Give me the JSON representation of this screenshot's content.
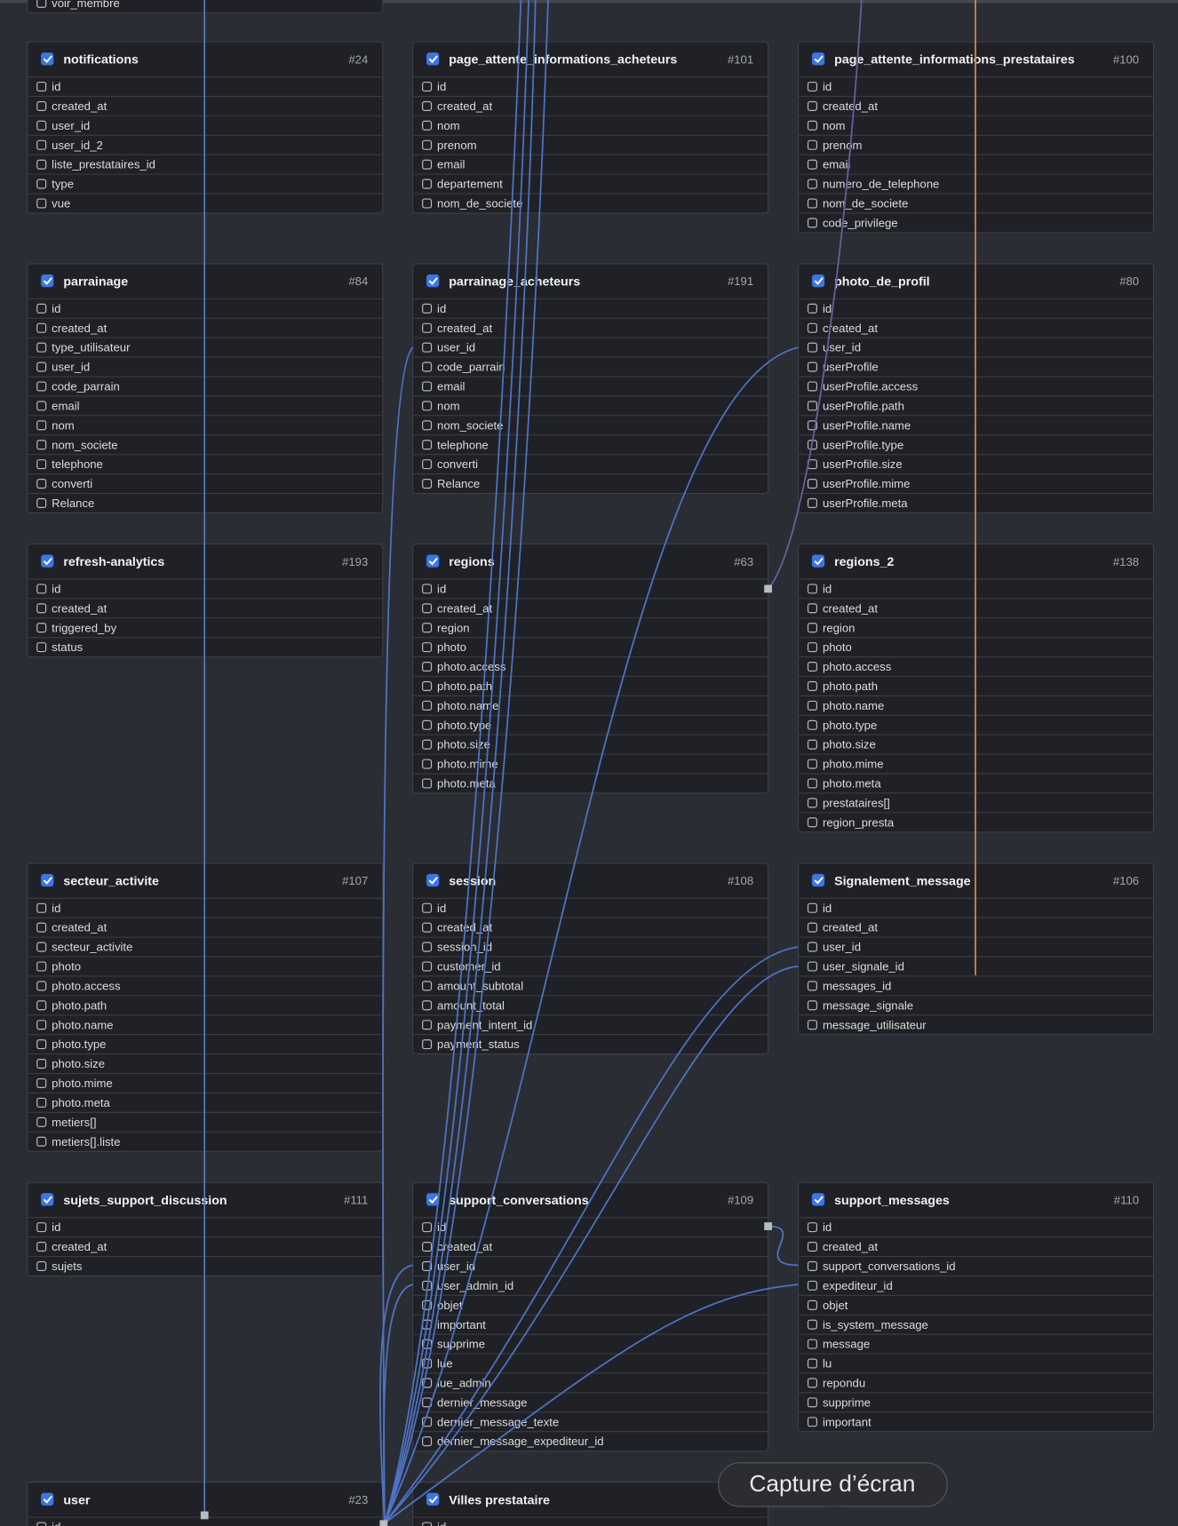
{
  "partial_top": {
    "fields": [
      "voir_membre"
    ]
  },
  "tables": [
    {
      "name": "notifications",
      "number": "#24",
      "fields": [
        "id",
        "created_at",
        "user_id",
        "user_id_2",
        "liste_prestataires_id",
        "type",
        "vue"
      ]
    },
    {
      "name": "page_attente_informations_acheteurs",
      "number": "#101",
      "fields": [
        "id",
        "created_at",
        "nom",
        "prenom",
        "email",
        "departement",
        "nom_de_societe"
      ]
    },
    {
      "name": "page_attente_informations_prestataires",
      "number": "#100",
      "fields": [
        "id",
        "created_at",
        "nom",
        "prenom",
        "email",
        "numero_de_telephone",
        "nom_de_societe",
        "code_privilege"
      ]
    },
    {
      "name": "parrainage",
      "number": "#84",
      "fields": [
        "id",
        "created_at",
        "type_utilisateur",
        "user_id",
        "code_parrain",
        "email",
        "nom",
        "nom_societe",
        "telephone",
        "converti",
        "Relance"
      ]
    },
    {
      "name": "parrainage_acheteurs",
      "number": "#191",
      "fields": [
        "id",
        "created_at",
        "user_id",
        "code_parrain",
        "email",
        "nom",
        "nom_societe",
        "telephone",
        "converti",
        "Relance"
      ]
    },
    {
      "name": "photo_de_profil",
      "number": "#80",
      "fields": [
        "id",
        "created_at",
        "user_id",
        "userProfile",
        "userProfile.access",
        "userProfile.path",
        "userProfile.name",
        "userProfile.type",
        "userProfile.size",
        "userProfile.mime",
        "userProfile.meta"
      ]
    },
    {
      "name": "refresh-analytics",
      "number": "#193",
      "fields": [
        "id",
        "created_at",
        "triggered_by",
        "status"
      ]
    },
    {
      "name": "regions",
      "number": "#63",
      "fields": [
        "id",
        "created_at",
        "region",
        "photo",
        "photo.access",
        "photo.path",
        "photo.name",
        "photo.type",
        "photo.size",
        "photo.mime",
        "photo.meta"
      ]
    },
    {
      "name": "regions_2",
      "number": "#138",
      "fields": [
        "id",
        "created_at",
        "region",
        "photo",
        "photo.access",
        "photo.path",
        "photo.name",
        "photo.type",
        "photo.size",
        "photo.mime",
        "photo.meta",
        "prestataires[]",
        "region_presta"
      ]
    },
    {
      "name": "secteur_activite",
      "number": "#107",
      "fields": [
        "id",
        "created_at",
        "secteur_activite",
        "photo",
        "photo.access",
        "photo.path",
        "photo.name",
        "photo.type",
        "photo.size",
        "photo.mime",
        "photo.meta",
        "metiers[]",
        "metiers[].liste"
      ]
    },
    {
      "name": "session",
      "number": "#108",
      "fields": [
        "id",
        "created_at",
        "session_id",
        "customer_id",
        "amount_subtotal",
        "amount_total",
        "payment_intent_id",
        "payment_status"
      ]
    },
    {
      "name": "Signalement_message",
      "number": "#106",
      "fields": [
        "id",
        "created_at",
        "user_id",
        "user_signale_id",
        "messages_id",
        "message_signale",
        "message_utilisateur"
      ]
    },
    {
      "name": "sujets_support_discussion",
      "number": "#111",
      "fields": [
        "id",
        "created_at",
        "sujets"
      ]
    },
    {
      "name": "support_conversations",
      "number": "#109",
      "fields": [
        "id",
        "created_at",
        "user_id",
        "user_admin_id",
        "objet",
        "important",
        "supprime",
        "lue",
        "lue_admin",
        "dernier_message",
        "dernier_message_texte",
        "dernier_message_expediteur_id"
      ]
    },
    {
      "name": "support_messages",
      "number": "#110",
      "fields": [
        "id",
        "created_at",
        "support_conversations_id",
        "expediteur_id",
        "objet",
        "is_system_message",
        "message",
        "lu",
        "repondu",
        "supprime",
        "important"
      ]
    },
    {
      "name": "user",
      "number": "#23",
      "fields": [
        "id"
      ]
    },
    {
      "name": "Villes prestataire",
      "fields": [
        "id"
      ]
    }
  ],
  "tooltip": "Capture d’écran"
}
